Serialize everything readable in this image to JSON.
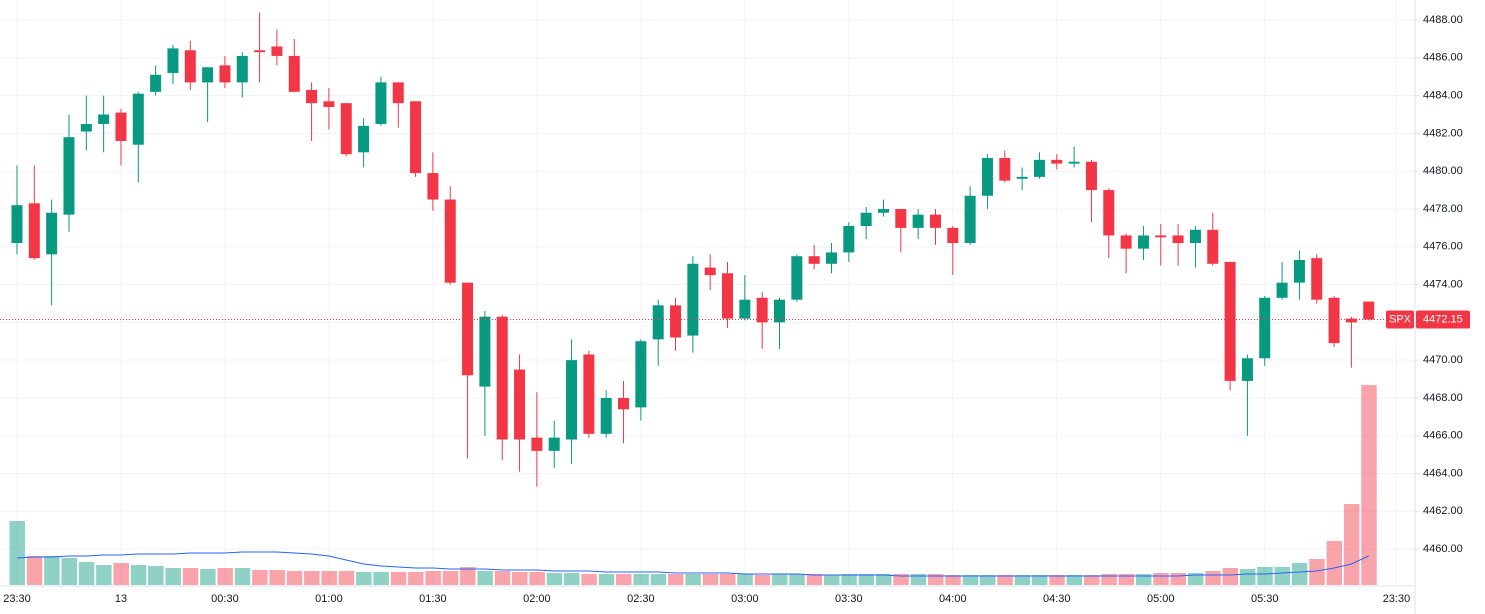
{
  "chart_data": {
    "type": "candlestick",
    "symbol": "SPX",
    "last_price": 4472.15,
    "up_color": "#089981",
    "down_color": "#f23645",
    "volume_up_color": "rgba(8,153,129,0.45)",
    "volume_down_color": "rgba(242,54,69,0.45)",
    "volume_ma_color": "#2962ff",
    "grid": true,
    "xlim": [
      -0.98,
      80.67
    ],
    "ylim": [
      4458.1,
      4489.06
    ],
    "vlim": [
      0,
      585
    ],
    "xticks": [
      {
        "value": 0,
        "label": "23:30"
      },
      {
        "value": 6,
        "label": "13"
      },
      {
        "value": 12,
        "label": "00:30"
      },
      {
        "value": 18,
        "label": "01:00"
      },
      {
        "value": 24,
        "label": "01:30"
      },
      {
        "value": 30,
        "label": "02:00"
      },
      {
        "value": 36,
        "label": "02:30"
      },
      {
        "value": 42,
        "label": "03:00"
      },
      {
        "value": 48,
        "label": "03:30"
      },
      {
        "value": 54,
        "label": "04:00"
      },
      {
        "value": 60,
        "label": "04:30"
      },
      {
        "value": 66,
        "label": "05:00"
      },
      {
        "value": 72,
        "label": "05:30"
      },
      {
        "value": 79.6,
        "label": "23:30"
      }
    ],
    "yticks": [
      {
        "value": 4460,
        "label": "4460.00"
      },
      {
        "value": 4462,
        "label": "4462.00"
      },
      {
        "value": 4464,
        "label": "4464.00"
      },
      {
        "value": 4466,
        "label": "4466.00"
      },
      {
        "value": 4468,
        "label": "4468.00"
      },
      {
        "value": 4470,
        "label": "4470.00"
      },
      {
        "value": 4472,
        "label": "4472.00"
      },
      {
        "value": 4474,
        "label": "4474.00"
      },
      {
        "value": 4476,
        "label": "4476.00"
      },
      {
        "value": 4478,
        "label": "4478.00"
      },
      {
        "value": 4480,
        "label": "4480.00"
      },
      {
        "value": 4482,
        "label": "4482.00"
      },
      {
        "value": 4484,
        "label": "4484.00"
      },
      {
        "value": 4486,
        "label": "4486.00"
      },
      {
        "value": 4488,
        "label": "4488.00"
      }
    ],
    "open": [
      4476.2,
      4478.3,
      4475.6,
      4477.7,
      4482.1,
      4482.5,
      4483.1,
      4481.4,
      4484.2,
      4485.2,
      4486.4,
      4484.7,
      4485.6,
      4484.7,
      4486.4,
      4486.6,
      4486.1,
      4484.3,
      4483.7,
      4483.6,
      4481.0,
      4482.5,
      4484.7,
      4483.7,
      4479.9,
      4478.5,
      4474.1,
      4468.6,
      4472.3,
      4469.5,
      4465.9,
      4465.2,
      4465.8,
      4470.3,
      4466.1,
      4468.0,
      4467.5,
      4471.1,
      4472.9,
      4471.3,
      4474.9,
      4474.6,
      4472.2,
      4473.3,
      4472.0,
      4473.2,
      4475.5,
      4475.1,
      4475.7,
      4477.1,
      4477.8,
      4478.0,
      4477.0,
      4477.7,
      4477.0,
      4476.2,
      4478.7,
      4480.7,
      4479.6,
      4479.7,
      4480.6,
      4480.4,
      4480.5,
      4479.0,
      4476.6,
      4475.9,
      4476.6,
      4476.6,
      4476.2,
      4476.9,
      4475.2,
      4468.9,
      4470.1,
      4473.3,
      4474.1,
      4475.4,
      4473.3,
      4472.2,
      4473.1
    ],
    "high": [
      4480.3,
      4480.3,
      4478.5,
      4483.0,
      4484.0,
      4484.0,
      4483.3,
      4484.2,
      4485.6,
      4486.7,
      4486.9,
      4485.5,
      4486.1,
      4486.3,
      4488.4,
      4487.5,
      4487.0,
      4484.7,
      4484.4,
      4483.6,
      4482.8,
      4485.0,
      4484.7,
      4483.7,
      4481.0,
      4479.2,
      4474.1,
      4472.6,
      4472.4,
      4470.3,
      4468.3,
      4466.8,
      4471.1,
      4470.5,
      4468.4,
      4468.9,
      4471.1,
      4473.2,
      4473.3,
      4475.5,
      4475.6,
      4475.2,
      4474.5,
      4473.6,
      4473.3,
      4475.6,
      4476.1,
      4476.2,
      4477.3,
      4478.1,
      4478.5,
      4478.0,
      4478.0,
      4478.0,
      4477.1,
      4479.2,
      4480.9,
      4481.1,
      4480.2,
      4481.0,
      4480.9,
      4481.3,
      4480.6,
      4479.1,
      4476.7,
      4477.1,
      4477.2,
      4477.2,
      4477.1,
      4477.8,
      4475.2,
      4470.3,
      4473.4,
      4475.2,
      4475.8,
      4475.6,
      4473.4,
      4472.3,
      4473.1
    ],
    "low": [
      4475.6,
      4475.3,
      4472.9,
      4476.8,
      4481.1,
      4481.0,
      4480.3,
      4479.4,
      4484.0,
      4484.6,
      4484.3,
      4482.6,
      4484.4,
      4483.9,
      4484.7,
      4485.6,
      4484.2,
      4481.6,
      4482.2,
      4480.8,
      4480.2,
      4482.4,
      4482.3,
      4479.7,
      4477.9,
      4474.0,
      4464.8,
      4466.0,
      4464.7,
      4464.1,
      4463.3,
      4464.3,
      4464.5,
      4465.9,
      4465.9,
      4465.6,
      4466.8,
      4469.7,
      4470.5,
      4470.4,
      4473.7,
      4471.7,
      4472.1,
      4470.6,
      4470.6,
      4473.1,
      4474.8,
      4474.6,
      4475.2,
      4476.4,
      4477.6,
      4475.7,
      4476.4,
      4476.1,
      4474.5,
      4476.1,
      4478.0,
      4479.4,
      4479.0,
      4479.6,
      4480.1,
      4480.2,
      4477.3,
      4475.4,
      4474.6,
      4475.3,
      4475.0,
      4475.0,
      4474.9,
      4475.0,
      4468.4,
      4466.0,
      4469.7,
      4473.2,
      4473.2,
      4473.0,
      4470.7,
      4469.6,
      4472.1
    ],
    "close": [
      4478.2,
      4475.4,
      4477.8,
      4481.8,
      4482.5,
      4483.0,
      4481.6,
      4484.1,
      4485.1,
      4486.5,
      4484.7,
      4485.5,
      4484.7,
      4486.1,
      4486.3,
      4486.1,
      4484.2,
      4483.6,
      4483.4,
      4480.9,
      4482.4,
      4484.7,
      4483.6,
      4479.9,
      4478.5,
      4474.1,
      4469.2,
      4472.3,
      4465.8,
      4465.8,
      4465.2,
      4465.9,
      4470.0,
      4466.1,
      4468.0,
      4467.4,
      4471.0,
      4472.9,
      4471.2,
      4475.1,
      4474.5,
      4472.2,
      4473.2,
      4472.0,
      4473.2,
      4475.5,
      4475.1,
      4475.7,
      4477.1,
      4477.8,
      4478.0,
      4477.0,
      4477.7,
      4477.0,
      4476.2,
      4478.7,
      4480.7,
      4479.5,
      4479.7,
      4480.6,
      4480.4,
      4480.5,
      4479.0,
      4476.6,
      4475.9,
      4476.6,
      4476.5,
      4476.2,
      4476.9,
      4475.1,
      4468.9,
      4470.1,
      4473.3,
      4474.1,
      4475.3,
      4473.2,
      4470.9,
      4472.0,
      4472.15
    ],
    "volume": [
      64,
      29,
      29,
      27,
      23,
      20,
      22,
      20,
      19,
      17,
      17,
      16,
      17,
      17,
      15,
      15,
      14,
      14,
      14,
      14,
      13,
      13,
      13,
      13,
      14,
      14,
      18,
      14,
      14,
      13,
      13,
      12,
      12,
      11,
      11,
      11,
      11,
      11,
      11,
      11,
      11,
      11,
      11,
      10,
      11,
      11,
      11,
      10,
      11,
      11,
      11,
      11,
      11,
      11,
      10,
      10,
      10,
      10,
      10,
      10,
      10,
      10,
      10,
      11,
      11,
      11,
      12,
      12,
      12,
      14,
      17,
      16,
      18,
      18,
      22,
      26,
      44,
      81,
      200
    ],
    "volume_ma": [
      27,
      28,
      28,
      29,
      29,
      30,
      30,
      31,
      31,
      31,
      32,
      32,
      32,
      33,
      33,
      33,
      32,
      31,
      29,
      25,
      21,
      19,
      18,
      17,
      17,
      16,
      16,
      16,
      15,
      15,
      15,
      14,
      14,
      14,
      13,
      13,
      13,
      13,
      12,
      12,
      12,
      12,
      11,
      11,
      11,
      11,
      10,
      10,
      10,
      10,
      10,
      9,
      9,
      9,
      9,
      9,
      9,
      9,
      9,
      9,
      9,
      9,
      9,
      9,
      9,
      9,
      9,
      9,
      10,
      10,
      10,
      11,
      11,
      12,
      13,
      14,
      17,
      21,
      29
    ]
  }
}
